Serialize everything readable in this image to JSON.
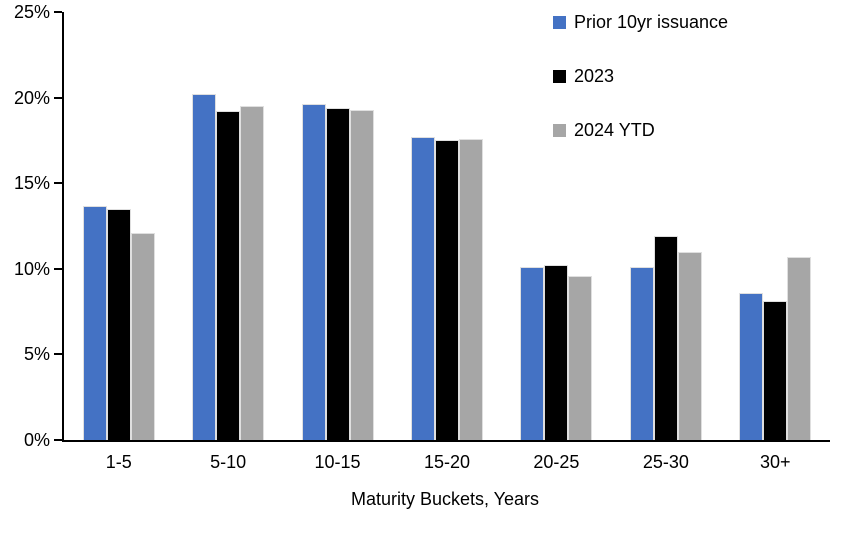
{
  "chart_data": {
    "type": "bar",
    "title": "",
    "categories": [
      "1-5",
      "5-10",
      "10-15",
      "15-20",
      "20-25",
      "25-30",
      "30+"
    ],
    "series": [
      {
        "name": "Prior 10yr issuance",
        "color": "#4472C4",
        "values": [
          13.7,
          20.2,
          19.6,
          17.7,
          10.1,
          10.1,
          8.6
        ]
      },
      {
        "name": "2023",
        "color": "#000000",
        "values": [
          13.5,
          19.2,
          19.4,
          17.5,
          10.2,
          11.9,
          8.1
        ]
      },
      {
        "name": "2024 YTD",
        "color": "#A6A6A6",
        "values": [
          12.1,
          19.5,
          19.3,
          17.6,
          9.6,
          11.0,
          10.7
        ]
      }
    ],
    "xlabel": "Maturity Buckets, Years",
    "ylabel": "",
    "ylim": [
      0,
      25
    ],
    "y_ticks": [
      "0%",
      "5%",
      "10%",
      "15%",
      "20%",
      "25%"
    ],
    "y_tick_values": [
      0,
      5,
      10,
      15,
      20,
      25
    ],
    "grid": false,
    "legend_position": "top-right",
    "axis_color": "#000000",
    "background_color": "#FFFFFF"
  }
}
